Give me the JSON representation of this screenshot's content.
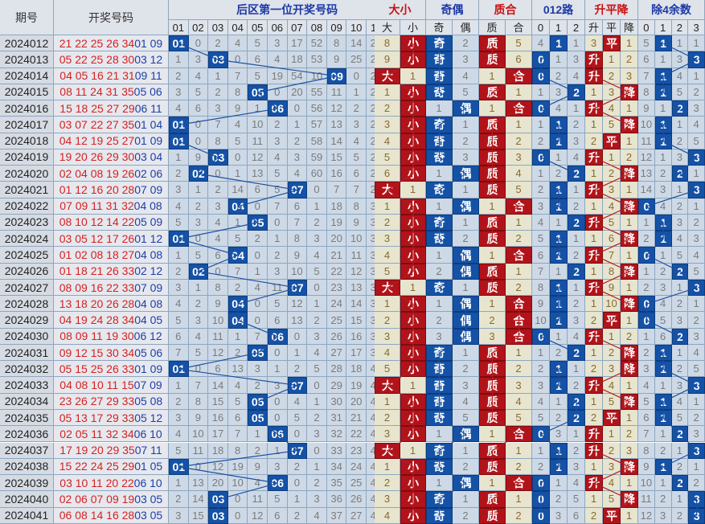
{
  "header": {
    "period": "期号",
    "numbers": "开奖号码",
    "back_first": "后区第一位开奖号码",
    "big_small": "大小",
    "odd_even": "奇偶",
    "prime_comp": "质合",
    "route012": "012路",
    "rise_fall": "升平降",
    "mod4": "除4余数"
  },
  "subheader": {
    "back_cols": [
      "01",
      "02",
      "03",
      "04",
      "05",
      "06",
      "07",
      "08",
      "09",
      "10",
      "11",
      "12"
    ],
    "big_small": [
      "大",
      "小"
    ],
    "odd_even": [
      "奇",
      "偶"
    ],
    "prime_comp": [
      "质",
      "合"
    ],
    "route012": [
      "0",
      "1",
      "2"
    ],
    "rise_fall": [
      "升",
      "平",
      "降"
    ],
    "mod4": [
      "0",
      "1",
      "2",
      "3"
    ]
  },
  "rows": [
    {
      "p": "2024012",
      "f": "21 22 25 26 34",
      "b": "01 09",
      "hit": 1,
      "miss": [
        "0",
        "2",
        "4",
        "5",
        "3",
        "17",
        "52",
        "8",
        "14",
        "20",
        "12"
      ],
      "bs": "小",
      "bsm": "8",
      "oe": "奇",
      "oem": "2",
      "pc": "质",
      "pcm": "5",
      "r012": 1,
      "r012m": [
        "4",
        "0",
        "1"
      ],
      "rf": "平",
      "rfm": [
        "3",
        "0",
        "1"
      ],
      "mod": 1,
      "modm": [
        "5",
        "0",
        "1",
        "1"
      ]
    },
    {
      "p": "2024013",
      "f": "05 22 25 28 30",
      "b": "03 12",
      "hit": 3,
      "miss": [
        "1",
        "3",
        "0",
        "6",
        "4",
        "18",
        "53",
        "9",
        "25",
        "21",
        "13"
      ],
      "bs": "小",
      "bsm": "9",
      "oe": "奇",
      "oem": "3",
      "pc": "质",
      "pcm": "6",
      "r012": 0,
      "r012m": [
        "0",
        "1",
        "3"
      ],
      "rf": "升",
      "rfm": [
        "0",
        "1",
        "2"
      ],
      "mod": 3,
      "modm": [
        "6",
        "1",
        "3",
        "0"
      ]
    },
    {
      "p": "2024014",
      "f": "04 05 16 21 31",
      "b": "09 11",
      "hit": 9,
      "miss": [
        "2",
        "4",
        "1",
        "7",
        "5",
        "19",
        "54",
        "10",
        "0",
        "22",
        "14"
      ],
      "bs": "大",
      "bsm": "1",
      "oe": "奇",
      "oem": "4",
      "pc": "合",
      "pcm": "1",
      "r012": 0,
      "r012m": [
        "0",
        "2",
        "4"
      ],
      "rf": "升",
      "rfm": [
        "0",
        "2",
        "3"
      ],
      "mod": 1,
      "modm": [
        "7",
        "0",
        "4",
        "1"
      ]
    },
    {
      "p": "2024015",
      "f": "08 11 24 31 35",
      "b": "05 06",
      "hit": 5,
      "miss": [
        "3",
        "5",
        "2",
        "8",
        "0",
        "20",
        "55",
        "11",
        "1",
        "23",
        "15"
      ],
      "bs": "小",
      "bsm": "1",
      "oe": "奇",
      "oem": "5",
      "pc": "质",
      "pcm": "1",
      "r012": 2,
      "r012m": [
        "1",
        "3",
        "0"
      ],
      "rf": "降",
      "rfm": [
        "1",
        "3",
        "0"
      ],
      "mod": 1,
      "modm": [
        "8",
        "0",
        "5",
        "2"
      ]
    },
    {
      "p": "2024016",
      "f": "15 18 25 27 29",
      "b": "06 11",
      "hit": 6,
      "miss": [
        "4",
        "6",
        "3",
        "9",
        "1",
        "0",
        "56",
        "12",
        "2",
        "24",
        "16"
      ],
      "bs": "小",
      "bsm": "2",
      "oe": "偶",
      "oem": "1",
      "pc": "合",
      "pcm": "1",
      "r012": 0,
      "r012m": [
        "0",
        "4",
        "1"
      ],
      "rf": "升",
      "rfm": [
        "0",
        "4",
        "1"
      ],
      "mod": 2,
      "modm": [
        "9",
        "1",
        "0",
        "3"
      ]
    },
    {
      "p": "2024017",
      "f": "03 07 22 27 35",
      "b": "01 04",
      "hit": 1,
      "miss": [
        "0",
        "7",
        "4",
        "10",
        "2",
        "1",
        "57",
        "13",
        "3",
        "25",
        "17"
      ],
      "bs": "小",
      "bsm": "3",
      "oe": "奇",
      "oem": "1",
      "pc": "质",
      "pcm": "1",
      "r012": 1,
      "r012m": [
        "1",
        "0",
        "2"
      ],
      "rf": "降",
      "rfm": [
        "1",
        "5",
        "0"
      ],
      "mod": 1,
      "modm": [
        "10",
        "0",
        "1",
        "4"
      ]
    },
    {
      "p": "2024018",
      "f": "04 12 19 25 27",
      "b": "01 09",
      "hit": 1,
      "miss": [
        "0",
        "8",
        "5",
        "11",
        "3",
        "2",
        "58",
        "14",
        "4",
        "26",
        "18"
      ],
      "bs": "小",
      "bsm": "4",
      "oe": "奇",
      "oem": "2",
      "pc": "质",
      "pcm": "2",
      "r012": 1,
      "r012m": [
        "2",
        "0",
        "3"
      ],
      "rf": "平",
      "rfm": [
        "2",
        "0",
        "1"
      ],
      "mod": 1,
      "modm": [
        "11",
        "0",
        "2",
        "5"
      ]
    },
    {
      "p": "2024019",
      "f": "19 20 26 29 30",
      "b": "03 04",
      "hit": 3,
      "miss": [
        "1",
        "9",
        "0",
        "12",
        "4",
        "3",
        "59",
        "15",
        "5",
        "27",
        "19"
      ],
      "bs": "小",
      "bsm": "5",
      "oe": "奇",
      "oem": "3",
      "pc": "质",
      "pcm": "3",
      "r012": 0,
      "r012m": [
        "0",
        "1",
        "4"
      ],
      "rf": "升",
      "rfm": [
        "0",
        "1",
        "2"
      ],
      "mod": 3,
      "modm": [
        "12",
        "1",
        "3",
        "0"
      ]
    },
    {
      "p": "2024020",
      "f": "02 04 08 19 26",
      "b": "02 06",
      "hit": 2,
      "miss": [
        "2",
        "0",
        "1",
        "13",
        "5",
        "4",
        "60",
        "16",
        "6",
        "28",
        "20"
      ],
      "bs": "小",
      "bsm": "6",
      "oe": "偶",
      "oem": "1",
      "pc": "质",
      "pcm": "4",
      "r012": 2,
      "r012m": [
        "1",
        "2",
        "0"
      ],
      "rf": "降",
      "rfm": [
        "1",
        "2",
        "0"
      ],
      "mod": 2,
      "modm": [
        "13",
        "2",
        "0",
        "1"
      ]
    },
    {
      "p": "2024021",
      "f": "01 12 16 20 28",
      "b": "07 09",
      "hit": 7,
      "miss": [
        "3",
        "1",
        "2",
        "14",
        "6",
        "5",
        "0",
        "7",
        "7",
        "29",
        "21"
      ],
      "bs": "大",
      "bsm": "1",
      "oe": "奇",
      "oem": "1",
      "pc": "质",
      "pcm": "5",
      "r012": 1,
      "r012m": [
        "2",
        "0",
        "1"
      ],
      "rf": "升",
      "rfm": [
        "0",
        "3",
        "1"
      ],
      "mod": 3,
      "modm": [
        "14",
        "3",
        "1",
        "0"
      ]
    },
    {
      "p": "2024022",
      "f": "07 09 11 31 32",
      "b": "04 08",
      "hit": 4,
      "miss": [
        "4",
        "2",
        "3",
        "0",
        "7",
        "6",
        "1",
        "18",
        "8",
        "30",
        "22"
      ],
      "bs": "小",
      "bsm": "1",
      "oe": "偶",
      "oem": "1",
      "pc": "合",
      "pcm": "1",
      "r012": 1,
      "r012m": [
        "3",
        "0",
        "2"
      ],
      "rf": "降",
      "rfm": [
        "1",
        "4",
        "0"
      ],
      "mod": 0,
      "modm": [
        "0",
        "4",
        "2",
        "1"
      ]
    },
    {
      "p": "2024023",
      "f": "08 10 12 14 22",
      "b": "05 09",
      "hit": 5,
      "miss": [
        "5",
        "3",
        "4",
        "1",
        "0",
        "7",
        "2",
        "19",
        "9",
        "31",
        "23"
      ],
      "bs": "小",
      "bsm": "2",
      "oe": "奇",
      "oem": "1",
      "pc": "质",
      "pcm": "1",
      "r012": 2,
      "r012m": [
        "4",
        "1",
        "0"
      ],
      "rf": "升",
      "rfm": [
        "0",
        "5",
        "1"
      ],
      "mod": 1,
      "modm": [
        "1",
        "0",
        "3",
        "2"
      ]
    },
    {
      "p": "2024024",
      "f": "03 05 12 17 26",
      "b": "01 12",
      "hit": 1,
      "miss": [
        "0",
        "4",
        "5",
        "2",
        "1",
        "8",
        "3",
        "20",
        "10",
        "32",
        "24"
      ],
      "bs": "小",
      "bsm": "3",
      "oe": "奇",
      "oem": "2",
      "pc": "质",
      "pcm": "2",
      "r012": 1,
      "r012m": [
        "5",
        "0",
        "1"
      ],
      "rf": "降",
      "rfm": [
        "1",
        "6",
        "0"
      ],
      "mod": 1,
      "modm": [
        "2",
        "0",
        "4",
        "3"
      ]
    },
    {
      "p": "2024025",
      "f": "01 02 08 18 27",
      "b": "04 08",
      "hit": 4,
      "miss": [
        "1",
        "5",
        "6",
        "0",
        "2",
        "9",
        "4",
        "21",
        "11",
        "33",
        "25"
      ],
      "bs": "小",
      "bsm": "4",
      "oe": "偶",
      "oem": "1",
      "pc": "合",
      "pcm": "1",
      "r012": 1,
      "r012m": [
        "6",
        "0",
        "2"
      ],
      "rf": "升",
      "rfm": [
        "0",
        "7",
        "1"
      ],
      "mod": 0,
      "modm": [
        "0",
        "1",
        "5",
        "4"
      ]
    },
    {
      "p": "2024026",
      "f": "01 18 21 26 33",
      "b": "02 12",
      "hit": 2,
      "miss": [
        "2",
        "0",
        "7",
        "1",
        "3",
        "10",
        "5",
        "22",
        "12",
        "34",
        "26"
      ],
      "bs": "小",
      "bsm": "5",
      "oe": "偶",
      "oem": "2",
      "pc": "质",
      "pcm": "1",
      "r012": 2,
      "r012m": [
        "7",
        "1",
        "0"
      ],
      "rf": "降",
      "rfm": [
        "1",
        "8",
        "0"
      ],
      "mod": 2,
      "modm": [
        "1",
        "2",
        "0",
        "5"
      ]
    },
    {
      "p": "2024027",
      "f": "08 09 16 22 33",
      "b": "07 09",
      "hit": 7,
      "miss": [
        "3",
        "1",
        "8",
        "2",
        "4",
        "11",
        "0",
        "23",
        "13",
        "35",
        "27"
      ],
      "bs": "大",
      "bsm": "1",
      "oe": "奇",
      "oem": "1",
      "pc": "质",
      "pcm": "2",
      "r012": 1,
      "r012m": [
        "8",
        "0",
        "1"
      ],
      "rf": "升",
      "rfm": [
        "0",
        "9",
        "1"
      ],
      "mod": 3,
      "modm": [
        "2",
        "3",
        "1",
        "0"
      ]
    },
    {
      "p": "2024028",
      "f": "13 18 20 26 28",
      "b": "04 08",
      "hit": 4,
      "miss": [
        "4",
        "2",
        "9",
        "0",
        "5",
        "12",
        "1",
        "24",
        "14",
        "36",
        "28"
      ],
      "bs": "小",
      "bsm": "1",
      "oe": "偶",
      "oem": "1",
      "pc": "合",
      "pcm": "1",
      "r012": 1,
      "r012m": [
        "9",
        "0",
        "2"
      ],
      "rf": "降",
      "rfm": [
        "1",
        "10",
        "0"
      ],
      "mod": 0,
      "modm": [
        "0",
        "4",
        "2",
        "1"
      ]
    },
    {
      "p": "2024029",
      "f": "04 19 24 28 34",
      "b": "04 05",
      "hit": 4,
      "miss": [
        "5",
        "3",
        "10",
        "0",
        "6",
        "13",
        "2",
        "25",
        "15",
        "37",
        "29"
      ],
      "bs": "小",
      "bsm": "2",
      "oe": "偶",
      "oem": "2",
      "pc": "合",
      "pcm": "2",
      "r012": 1,
      "r012m": [
        "10",
        "0",
        "3"
      ],
      "rf": "平",
      "rfm": [
        "2",
        "0",
        "1"
      ],
      "mod": 0,
      "modm": [
        "0",
        "5",
        "3",
        "2"
      ]
    },
    {
      "p": "2024030",
      "f": "08 09 11 19 30",
      "b": "06 12",
      "hit": 6,
      "miss": [
        "6",
        "4",
        "11",
        "1",
        "7",
        "0",
        "3",
        "26",
        "16",
        "38",
        "30"
      ],
      "bs": "小",
      "bsm": "3",
      "oe": "偶",
      "oem": "3",
      "pc": "合",
      "pcm": "3",
      "r012": 0,
      "r012m": [
        "0",
        "1",
        "4"
      ],
      "rf": "升",
      "rfm": [
        "0",
        "1",
        "2"
      ],
      "mod": 2,
      "modm": [
        "1",
        "6",
        "0",
        "3"
      ]
    },
    {
      "p": "2024031",
      "f": "09 12 15 30 34",
      "b": "05 06",
      "hit": 5,
      "miss": [
        "7",
        "5",
        "12",
        "2",
        "0",
        "1",
        "4",
        "27",
        "17",
        "39",
        "31"
      ],
      "bs": "小",
      "bsm": "4",
      "oe": "奇",
      "oem": "1",
      "pc": "质",
      "pcm": "1",
      "r012": 2,
      "r012m": [
        "1",
        "2",
        "0"
      ],
      "rf": "降",
      "rfm": [
        "1",
        "2",
        "0"
      ],
      "mod": 1,
      "modm": [
        "2",
        "0",
        "1",
        "4"
      ]
    },
    {
      "p": "2024032",
      "f": "05 15 25 26 33",
      "b": "01 09",
      "hit": 1,
      "miss": [
        "0",
        "6",
        "13",
        "3",
        "1",
        "2",
        "5",
        "28",
        "18",
        "40",
        "32"
      ],
      "bs": "小",
      "bsm": "5",
      "oe": "奇",
      "oem": "2",
      "pc": "质",
      "pcm": "2",
      "r012": 1,
      "r012m": [
        "2",
        "0",
        "1"
      ],
      "rf": "降",
      "rfm": [
        "2",
        "3",
        "0"
      ],
      "mod": 1,
      "modm": [
        "3",
        "0",
        "2",
        "5"
      ]
    },
    {
      "p": "2024033",
      "f": "04 08 10 11 15",
      "b": "07 09",
      "hit": 7,
      "miss": [
        "1",
        "7",
        "14",
        "4",
        "2",
        "3",
        "0",
        "29",
        "19",
        "41",
        "33"
      ],
      "bs": "大",
      "bsm": "1",
      "oe": "奇",
      "oem": "3",
      "pc": "质",
      "pcm": "3",
      "r012": 1,
      "r012m": [
        "3",
        "0",
        "2"
      ],
      "rf": "升",
      "rfm": [
        "0",
        "4",
        "1"
      ],
      "mod": 3,
      "modm": [
        "4",
        "1",
        "3",
        "0"
      ]
    },
    {
      "p": "2024034",
      "f": "23 26 27 29 33",
      "b": "05 08",
      "hit": 5,
      "miss": [
        "2",
        "8",
        "15",
        "5",
        "0",
        "4",
        "1",
        "30",
        "20",
        "42",
        "34"
      ],
      "bs": "小",
      "bsm": "1",
      "oe": "奇",
      "oem": "4",
      "pc": "质",
      "pcm": "4",
      "r012": 2,
      "r012m": [
        "4",
        "1",
        "0"
      ],
      "rf": "降",
      "rfm": [
        "1",
        "5",
        "0"
      ],
      "mod": 1,
      "modm": [
        "5",
        "0",
        "4",
        "1"
      ]
    },
    {
      "p": "2024035",
      "f": "05 13 17 29 33",
      "b": "05 12",
      "hit": 5,
      "miss": [
        "3",
        "9",
        "16",
        "6",
        "0",
        "5",
        "2",
        "31",
        "21",
        "43",
        "35"
      ],
      "bs": "小",
      "bsm": "2",
      "oe": "奇",
      "oem": "5",
      "pc": "质",
      "pcm": "5",
      "r012": 2,
      "r012m": [
        "5",
        "2",
        "0"
      ],
      "rf": "平",
      "rfm": [
        "2",
        "0",
        "1"
      ],
      "mod": 1,
      "modm": [
        "6",
        "0",
        "5",
        "2"
      ]
    },
    {
      "p": "2024036",
      "f": "02 05 11 32 34",
      "b": "06 10",
      "hit": 6,
      "miss": [
        "4",
        "10",
        "17",
        "7",
        "1",
        "0",
        "3",
        "32",
        "22",
        "44",
        "36"
      ],
      "bs": "小",
      "bsm": "3",
      "oe": "偶",
      "oem": "1",
      "pc": "合",
      "pcm": "1",
      "r012": 0,
      "r012m": [
        "0",
        "3",
        "1"
      ],
      "rf": "升",
      "rfm": [
        "0",
        "1",
        "2"
      ],
      "mod": 2,
      "modm": [
        "7",
        "1",
        "0",
        "3"
      ]
    },
    {
      "p": "2024037",
      "f": "17 19 20 29 35",
      "b": "07 11",
      "hit": 7,
      "miss": [
        "5",
        "11",
        "18",
        "8",
        "2",
        "1",
        "0",
        "33",
        "23",
        "45",
        "37"
      ],
      "bs": "大",
      "bsm": "1",
      "oe": "奇",
      "oem": "1",
      "pc": "质",
      "pcm": "1",
      "r012": 1,
      "r012m": [
        "1",
        "0",
        "2"
      ],
      "rf": "升",
      "rfm": [
        "0",
        "2",
        "3"
      ],
      "mod": 3,
      "modm": [
        "8",
        "2",
        "1",
        "0"
      ]
    },
    {
      "p": "2024038",
      "f": "15 22 24 25 29",
      "b": "01 05",
      "hit": 1,
      "miss": [
        "0",
        "12",
        "19",
        "9",
        "3",
        "2",
        "1",
        "34",
        "24",
        "46",
        "38"
      ],
      "bs": "小",
      "bsm": "1",
      "oe": "奇",
      "oem": "2",
      "pc": "质",
      "pcm": "2",
      "r012": 1,
      "r012m": [
        "2",
        "0",
        "3"
      ],
      "rf": "降",
      "rfm": [
        "1",
        "3",
        "0"
      ],
      "mod": 1,
      "modm": [
        "9",
        "0",
        "2",
        "1"
      ]
    },
    {
      "p": "2024039",
      "f": "03 10 11 20 22",
      "b": "06 10",
      "hit": 6,
      "miss": [
        "1",
        "13",
        "20",
        "10",
        "4",
        "0",
        "2",
        "35",
        "25",
        "47",
        "39"
      ],
      "bs": "小",
      "bsm": "2",
      "oe": "偶",
      "oem": "1",
      "pc": "合",
      "pcm": "1",
      "r012": 0,
      "r012m": [
        "0",
        "1",
        "4"
      ],
      "rf": "升",
      "rfm": [
        "0",
        "4",
        "1"
      ],
      "mod": 2,
      "modm": [
        "10",
        "1",
        "0",
        "2"
      ]
    },
    {
      "p": "2024040",
      "f": "02 06 07 09 19",
      "b": "03 05",
      "hit": 3,
      "miss": [
        "2",
        "14",
        "0",
        "11",
        "5",
        "1",
        "3",
        "36",
        "26",
        "48",
        "40"
      ],
      "bs": "小",
      "bsm": "3",
      "oe": "奇",
      "oem": "1",
      "pc": "质",
      "pcm": "1",
      "r012": 0,
      "r012m": [
        "0",
        "2",
        "5"
      ],
      "rf": "降",
      "rfm": [
        "1",
        "5",
        "0"
      ],
      "mod": 3,
      "modm": [
        "11",
        "2",
        "1",
        "0"
      ]
    },
    {
      "p": "2024041",
      "f": "06 08 14 16 28",
      "b": "03 05",
      "hit": 3,
      "miss": [
        "3",
        "15",
        "0",
        "12",
        "6",
        "2",
        "4",
        "37",
        "27",
        "49",
        "41"
      ],
      "bs": "小",
      "bsm": "4",
      "oe": "奇",
      "oem": "2",
      "pc": "质",
      "pcm": "2",
      "r012": 0,
      "r012m": [
        "0",
        "3",
        "6"
      ],
      "rf": "平",
      "rfm": [
        "2",
        "0",
        "1"
      ],
      "mod": 3,
      "modm": [
        "12",
        "3",
        "2",
        "0"
      ]
    }
  ]
}
